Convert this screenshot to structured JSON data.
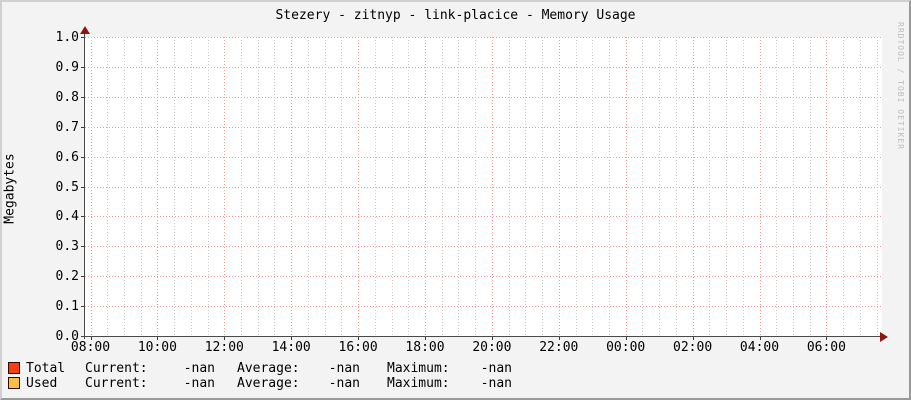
{
  "title": "Stezery - zitnyp - link-placice - Memory Usage",
  "watermark": "RRDTOOL / TOBI OETIKER",
  "chart_data": {
    "type": "line",
    "title": "Stezery - zitnyp - link-placice - Memory Usage",
    "xlabel": "",
    "ylabel": "Megabytes",
    "ylim": [
      0.0,
      1.0
    ],
    "grid": "on",
    "y_ticks": [
      "1.0",
      "0.9",
      "0.8",
      "0.7",
      "0.6",
      "0.5",
      "0.4",
      "0.3",
      "0.2",
      "0.1",
      "0.0"
    ],
    "x_ticks": [
      "08:00",
      "10:00",
      "12:00",
      "14:00",
      "16:00",
      "18:00",
      "20:00",
      "22:00",
      "00:00",
      "02:00",
      "04:00",
      "06:00"
    ],
    "series": [
      {
        "name": "Total",
        "color": "#f93f12",
        "values": []
      },
      {
        "name": "Used",
        "color": "#fbc043",
        "values": []
      }
    ],
    "colors": {
      "major_grid": "#ef9b9b",
      "minor_grid": "#cccccc",
      "axis": "#4a4a4a",
      "arrow": "#8f1511",
      "canvas": "#ffffff",
      "background": "#f3f3f3",
      "watermark_text": "#bdbdbd"
    }
  },
  "legend": {
    "rows": [
      {
        "name": "Total",
        "swatch_color": "#f93f12",
        "current_label": "Current:",
        "current": "-nan",
        "average_label": "Average:",
        "average": "-nan",
        "maximum_label": "Maximum:",
        "maximum": "-nan"
      },
      {
        "name": "Used",
        "swatch_color": "#fbc043",
        "current_label": "Current:",
        "current": "-nan",
        "average_label": "Average:",
        "average": "-nan",
        "maximum_label": "Maximum:",
        "maximum": "-nan"
      }
    ]
  }
}
